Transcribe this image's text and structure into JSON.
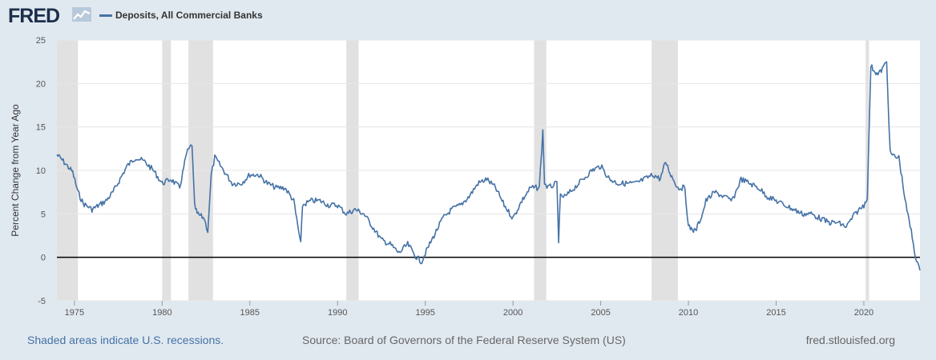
{
  "brand": {
    "logo_text": "FRED",
    "logo_icon": "line-chart-icon"
  },
  "footer": {
    "recession_note": "Shaded areas indicate U.S. recessions.",
    "source": "Source: Board of Governors of the Federal Reserve System (US)",
    "site": "fred.stlouisfed.org"
  },
  "colors": {
    "line": "#4572a7",
    "background": "#e1e9f0",
    "plot": "#ffffff",
    "recession": "#e1e1e1",
    "zero_line": "#000000"
  },
  "chart_data": {
    "type": "line",
    "title": "",
    "xlabel": "",
    "ylabel": "Percent Change from Year Ago",
    "xlim": [
      1974.0,
      2023.2
    ],
    "ylim": [
      -5,
      25
    ],
    "grid": true,
    "legend_position": "top-left",
    "x_ticks": [
      "1975",
      "1980",
      "1985",
      "1990",
      "1995",
      "2000",
      "2005",
      "2010",
      "2015",
      "2020"
    ],
    "y_ticks": [
      "-5",
      "0",
      "5",
      "10",
      "15",
      "20",
      "25"
    ],
    "recessions": [
      [
        1974.0,
        1975.2
      ],
      [
        1980.0,
        1980.5
      ],
      [
        1981.5,
        1982.9
      ],
      [
        1990.5,
        1991.2
      ],
      [
        2001.2,
        2001.9
      ],
      [
        2007.9,
        2009.4
      ],
      [
        2020.1,
        2020.3
      ]
    ],
    "series": [
      {
        "name": "Deposits, All Commercial Banks",
        "x": [
          1974.0,
          1974.3,
          1974.6,
          1974.9,
          1975.2,
          1975.5,
          1975.8,
          1976.0,
          1976.4,
          1976.8,
          1977.2,
          1977.6,
          1978.0,
          1978.5,
          1979.0,
          1979.5,
          1980.0,
          1980.5,
          1981.0,
          1981.4,
          1981.7,
          1981.85,
          1982.0,
          1982.4,
          1982.6,
          1982.8,
          1983.0,
          1983.5,
          1984.0,
          1984.5,
          1985.0,
          1985.5,
          1986.0,
          1986.5,
          1987.0,
          1987.5,
          1987.9,
          1988.0,
          1988.5,
          1989.0,
          1989.5,
          1990.0,
          1990.5,
          1991.0,
          1991.5,
          1992.0,
          1992.5,
          1993.0,
          1993.5,
          1994.0,
          1994.5,
          1994.8,
          1995.0,
          1995.5,
          1996.0,
          1996.5,
          1997.0,
          1997.5,
          1998.0,
          1998.5,
          1999.0,
          1999.5,
          2000.0,
          2000.5,
          2001.0,
          2001.5,
          2001.7,
          2001.8,
          2002.0,
          2002.5,
          2002.6,
          2002.7,
          2003.0,
          2003.5,
          2004.0,
          2004.5,
          2005.0,
          2005.5,
          2006.0,
          2006.5,
          2007.0,
          2007.5,
          2008.0,
          2008.4,
          2008.7,
          2009.0,
          2009.4,
          2009.8,
          2010.0,
          2010.4,
          2010.8,
          2011.0,
          2011.5,
          2012.0,
          2012.5,
          2013.0,
          2013.5,
          2014.0,
          2014.5,
          2015.0,
          2015.5,
          2016.0,
          2016.5,
          2017.0,
          2017.5,
          2018.0,
          2018.5,
          2019.0,
          2019.5,
          2020.0,
          2020.2,
          2020.4,
          2020.8,
          2021.0,
          2021.3,
          2021.5,
          2021.8,
          2022.0,
          2022.4,
          2022.7,
          2023.0,
          2023.2
        ],
        "values": [
          11.8,
          11.2,
          10.5,
          9.8,
          7.5,
          6.2,
          5.8,
          5.5,
          6.0,
          6.5,
          7.5,
          9.0,
          10.5,
          11.5,
          11.0,
          10.0,
          8.5,
          9.0,
          8.0,
          12.0,
          13.0,
          6.0,
          5.0,
          4.5,
          3.0,
          9.5,
          11.5,
          10.0,
          8.5,
          8.5,
          9.5,
          9.5,
          8.5,
          8.0,
          8.0,
          6.5,
          1.5,
          6.0,
          6.5,
          6.5,
          6.0,
          6.0,
          5.0,
          5.5,
          5.0,
          3.5,
          2.0,
          1.5,
          0.5,
          1.5,
          0.0,
          -0.5,
          0.5,
          2.5,
          4.5,
          5.5,
          6.0,
          7.0,
          8.5,
          9.0,
          8.0,
          6.0,
          4.5,
          6.5,
          8.0,
          8.0,
          14.5,
          8.5,
          8.0,
          8.5,
          2.0,
          7.0,
          7.0,
          8.0,
          9.0,
          10.0,
          10.5,
          9.0,
          8.5,
          8.5,
          8.5,
          9.0,
          9.5,
          9.0,
          11.0,
          9.5,
          8.0,
          8.0,
          3.5,
          3.0,
          5.0,
          6.5,
          7.5,
          7.0,
          6.5,
          9.0,
          8.5,
          8.0,
          7.0,
          6.5,
          6.0,
          5.5,
          5.0,
          5.0,
          4.5,
          4.0,
          4.0,
          3.5,
          5.0,
          6.0,
          7.0,
          22.0,
          21.0,
          21.5,
          22.5,
          12.0,
          11.5,
          11.5,
          6.0,
          3.0,
          -0.5,
          -1.5
        ]
      }
    ]
  }
}
